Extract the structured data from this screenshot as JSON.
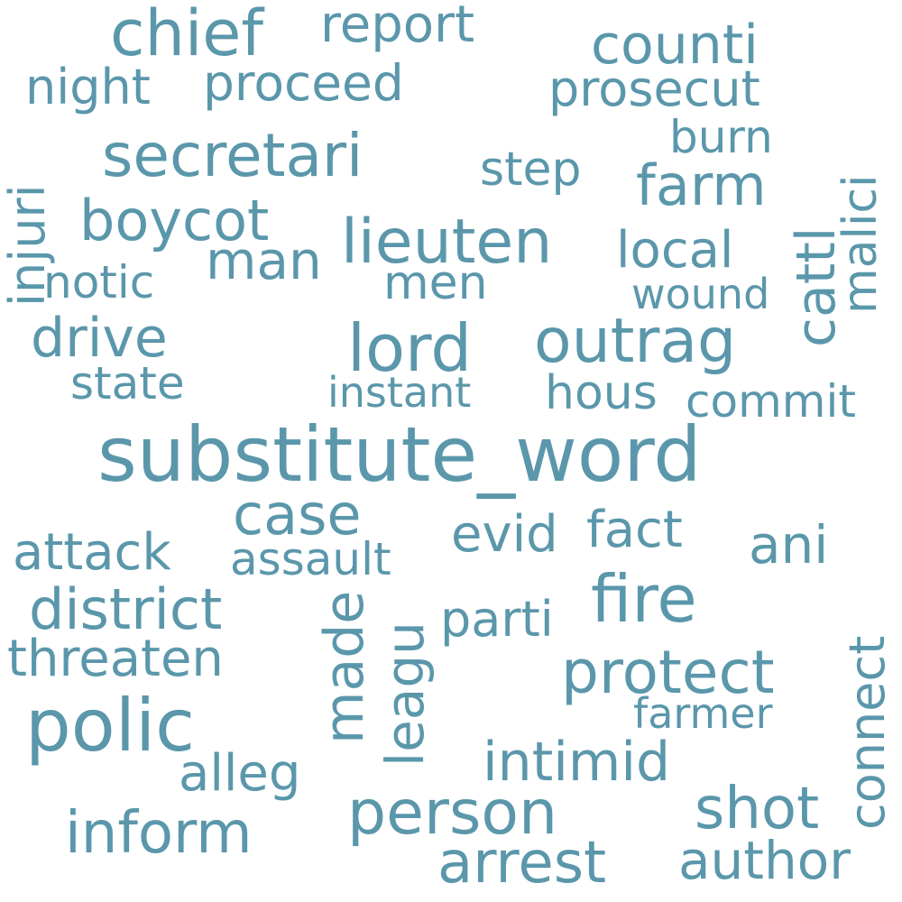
{
  "words": {
    "substitute_word": "substitute_word",
    "chief": "chief",
    "report": "report",
    "counti": "counti",
    "night": "night",
    "proceed": "proceed",
    "prosecut": "prosecut",
    "burn": "burn",
    "secretari": "secretari",
    "step": "step",
    "farm": "farm",
    "injuri": "injuri",
    "malici": "malici",
    "boycot": "boycot",
    "lieuten": "lieuten",
    "local": "local",
    "cattl": "cattl",
    "man": "man",
    "notic": "notic",
    "men": "men",
    "wound": "wound",
    "drive": "drive",
    "lord": "lord",
    "outrag": "outrag",
    "state": "state",
    "instant": "instant",
    "hous": "hous",
    "commit": "commit",
    "case": "case",
    "evid": "evid",
    "fact": "fact",
    "attack": "attack",
    "assault": "assault",
    "ani": "ani",
    "district": "district",
    "made": "made",
    "leagu": "leagu",
    "parti": "parti",
    "fire": "fire",
    "threaten": "threaten",
    "protect": "protect",
    "connect": "connect",
    "polic": "polic",
    "farmer": "farmer",
    "alleg": "alleg",
    "intimid": "intimid",
    "person": "person",
    "shot": "shot",
    "inform": "inform",
    "arrest": "arrest",
    "author": "author"
  },
  "colors": {
    "word": "#5b97ab",
    "background": "#ffffff"
  }
}
